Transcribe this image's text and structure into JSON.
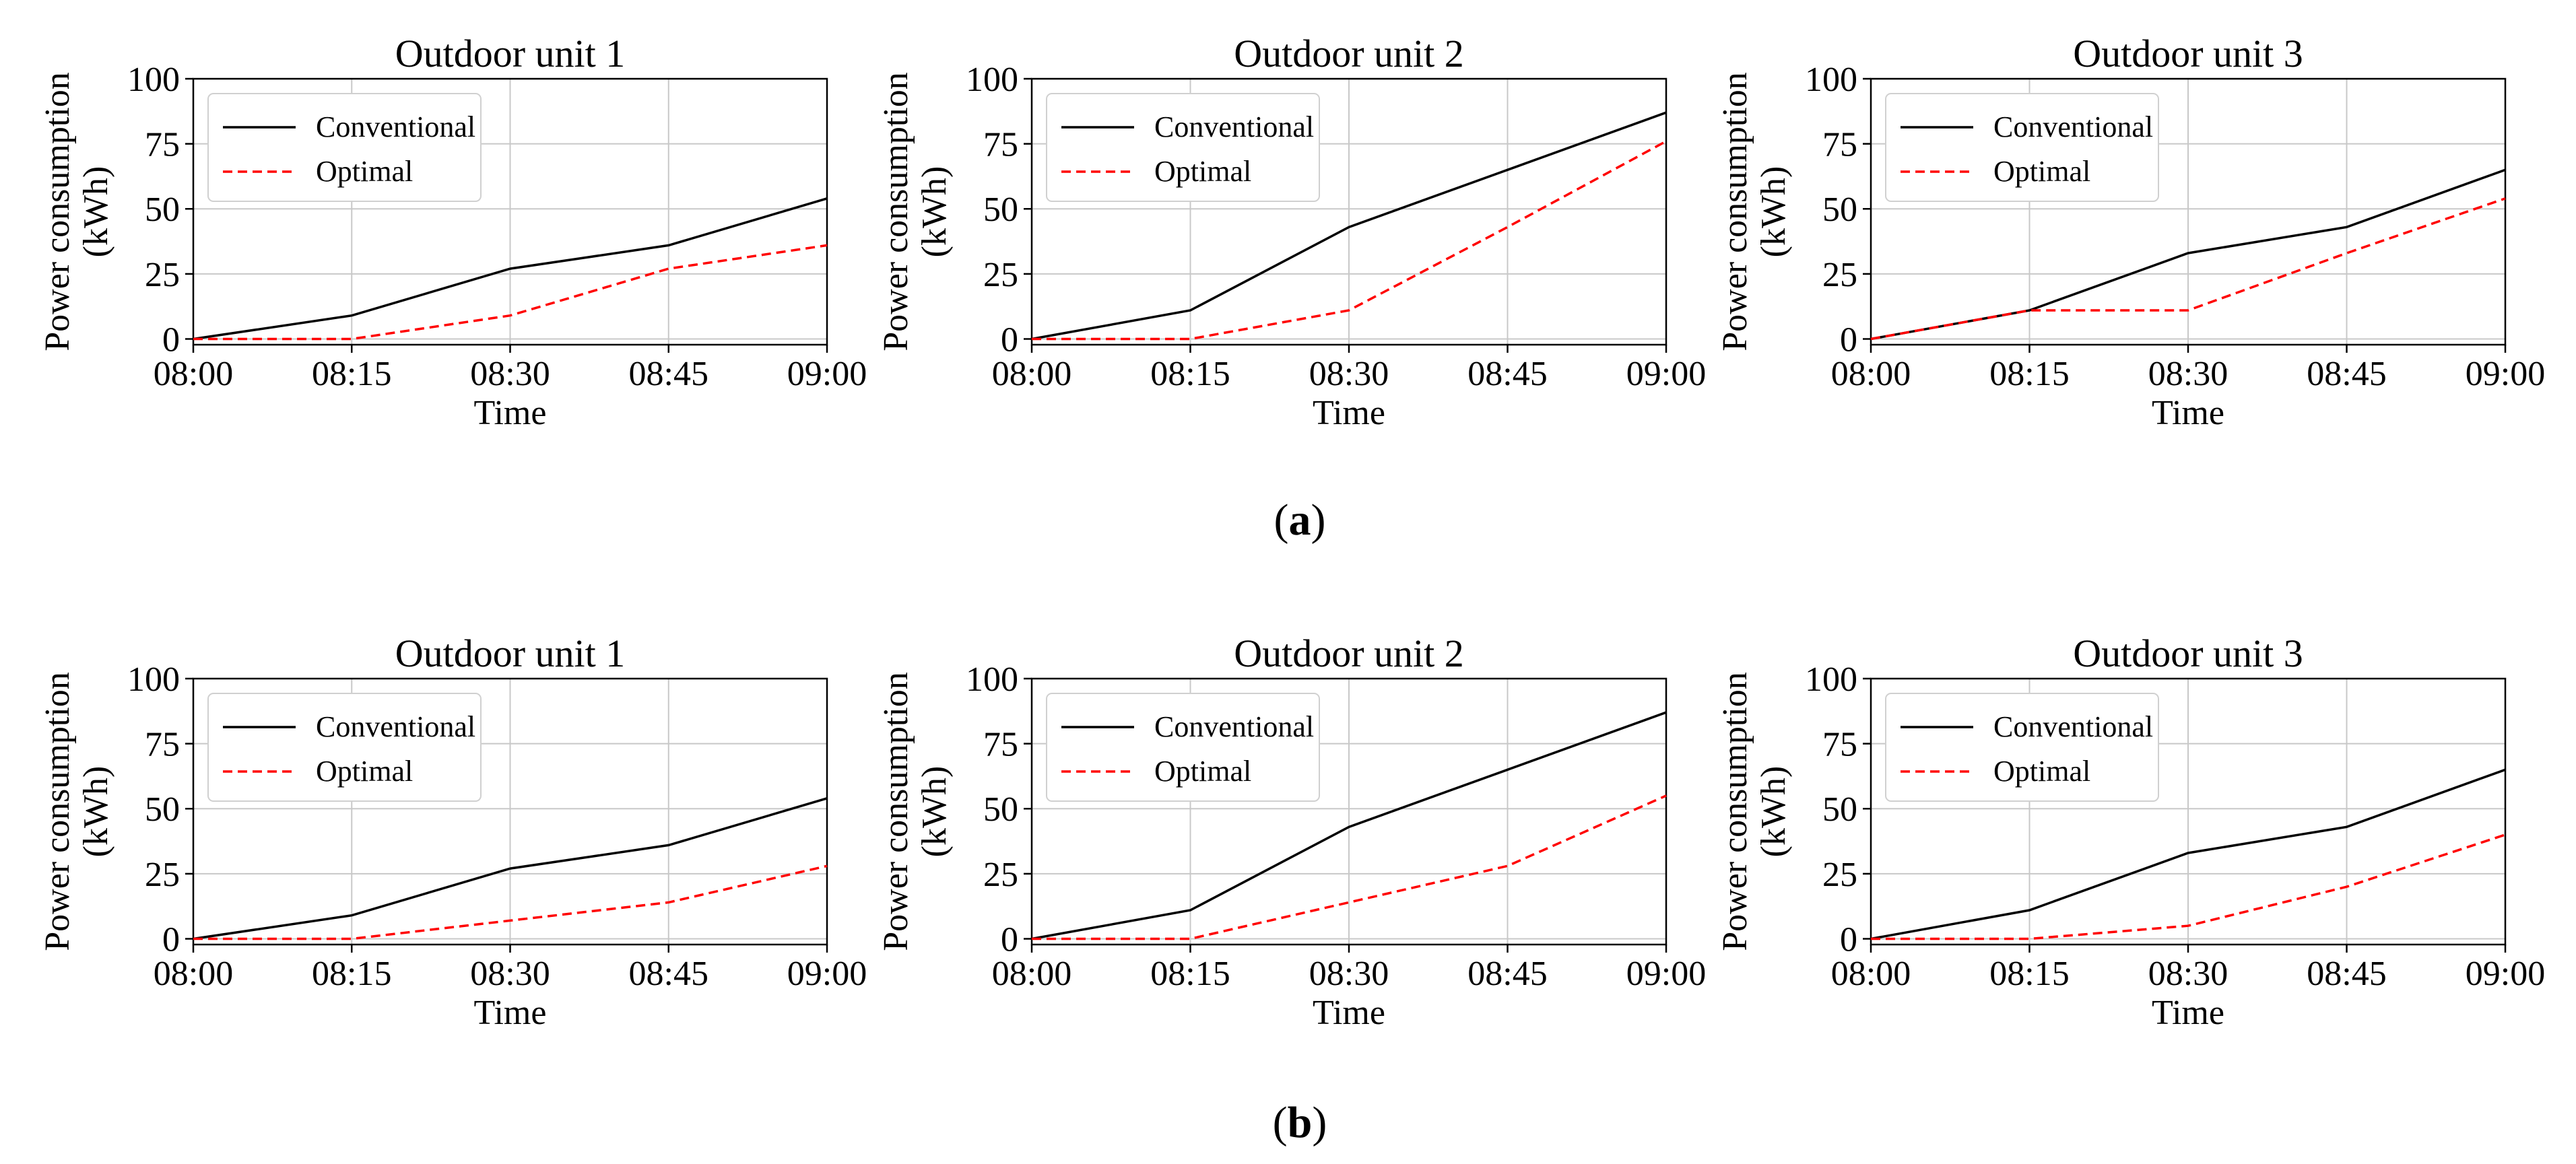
{
  "figure": {
    "panel_a_caption": "a",
    "panel_b_caption": "b"
  },
  "chart_data": [
    {
      "type": "line",
      "panel": "a",
      "title": "Outdoor unit 1",
      "xlabel": "Time",
      "ylabel": [
        "Power consumption",
        "(kWh)"
      ],
      "categories": [
        "08:00",
        "08:15",
        "08:30",
        "08:45",
        "09:00"
      ],
      "ylim": [
        0,
        100
      ],
      "yticks": [
        0,
        25,
        50,
        75,
        100
      ],
      "grid": true,
      "legend": "top-left",
      "series": [
        {
          "name": "Conventional",
          "color": "#000000",
          "dash": "solid",
          "values": [
            0,
            9,
            27,
            36,
            54
          ]
        },
        {
          "name": "Optimal",
          "color": "#ff0000",
          "dash": "dashed",
          "values": [
            0,
            0,
            9,
            27,
            36
          ]
        }
      ]
    },
    {
      "type": "line",
      "panel": "a",
      "title": "Outdoor unit 2",
      "xlabel": "Time",
      "ylabel": [
        "Power consumption",
        "(kWh)"
      ],
      "categories": [
        "08:00",
        "08:15",
        "08:30",
        "08:45",
        "09:00"
      ],
      "ylim": [
        0,
        100
      ],
      "yticks": [
        0,
        25,
        50,
        75,
        100
      ],
      "grid": true,
      "legend": "top-left",
      "series": [
        {
          "name": "Conventional",
          "color": "#000000",
          "dash": "solid",
          "values": [
            0,
            11,
            43,
            65,
            87
          ]
        },
        {
          "name": "Optimal",
          "color": "#ff0000",
          "dash": "dashed",
          "values": [
            0,
            0,
            11,
            43,
            76
          ]
        }
      ]
    },
    {
      "type": "line",
      "panel": "a",
      "title": "Outdoor unit 3",
      "xlabel": "Time",
      "ylabel": [
        "Power consumption",
        "(kWh)"
      ],
      "categories": [
        "08:00",
        "08:15",
        "08:30",
        "08:45",
        "09:00"
      ],
      "ylim": [
        0,
        100
      ],
      "yticks": [
        0,
        25,
        50,
        75,
        100
      ],
      "grid": true,
      "legend": "top-left",
      "series": [
        {
          "name": "Conventional",
          "color": "#000000",
          "dash": "solid",
          "values": [
            0,
            11,
            33,
            43,
            65
          ]
        },
        {
          "name": "Optimal",
          "color": "#ff0000",
          "dash": "dashed",
          "values": [
            0,
            11,
            11,
            33,
            54
          ]
        }
      ]
    },
    {
      "type": "line",
      "panel": "b",
      "title": "Outdoor unit 1",
      "xlabel": "Time",
      "ylabel": [
        "Power consumption",
        "(kWh)"
      ],
      "categories": [
        "08:00",
        "08:15",
        "08:30",
        "08:45",
        "09:00"
      ],
      "ylim": [
        0,
        100
      ],
      "yticks": [
        0,
        25,
        50,
        75,
        100
      ],
      "grid": true,
      "legend": "top-left",
      "series": [
        {
          "name": "Conventional",
          "color": "#000000",
          "dash": "solid",
          "values": [
            0,
            9,
            27,
            36,
            54
          ]
        },
        {
          "name": "Optimal",
          "color": "#ff0000",
          "dash": "dashed",
          "values": [
            0,
            0,
            7,
            14,
            28
          ]
        }
      ]
    },
    {
      "type": "line",
      "panel": "b",
      "title": "Outdoor unit 2",
      "xlabel": "Time",
      "ylabel": [
        "Power consumption",
        "(kWh)"
      ],
      "categories": [
        "08:00",
        "08:15",
        "08:30",
        "08:45",
        "09:00"
      ],
      "ylim": [
        0,
        100
      ],
      "yticks": [
        0,
        25,
        50,
        75,
        100
      ],
      "grid": true,
      "legend": "top-left",
      "series": [
        {
          "name": "Conventional",
          "color": "#000000",
          "dash": "solid",
          "values": [
            0,
            11,
            43,
            65,
            87
          ]
        },
        {
          "name": "Optimal",
          "color": "#ff0000",
          "dash": "dashed",
          "values": [
            0,
            0,
            14,
            28,
            55
          ]
        }
      ]
    },
    {
      "type": "line",
      "panel": "b",
      "title": "Outdoor unit 3",
      "xlabel": "Time",
      "ylabel": [
        "Power consumption",
        "(kWh)"
      ],
      "categories": [
        "08:00",
        "08:15",
        "08:30",
        "08:45",
        "09:00"
      ],
      "ylim": [
        0,
        100
      ],
      "yticks": [
        0,
        25,
        50,
        75,
        100
      ],
      "grid": true,
      "legend": "top-left",
      "series": [
        {
          "name": "Conventional",
          "color": "#000000",
          "dash": "solid",
          "values": [
            0,
            11,
            33,
            43,
            65
          ]
        },
        {
          "name": "Optimal",
          "color": "#ff0000",
          "dash": "dashed",
          "values": [
            0,
            0,
            5,
            20,
            40
          ]
        }
      ]
    }
  ]
}
